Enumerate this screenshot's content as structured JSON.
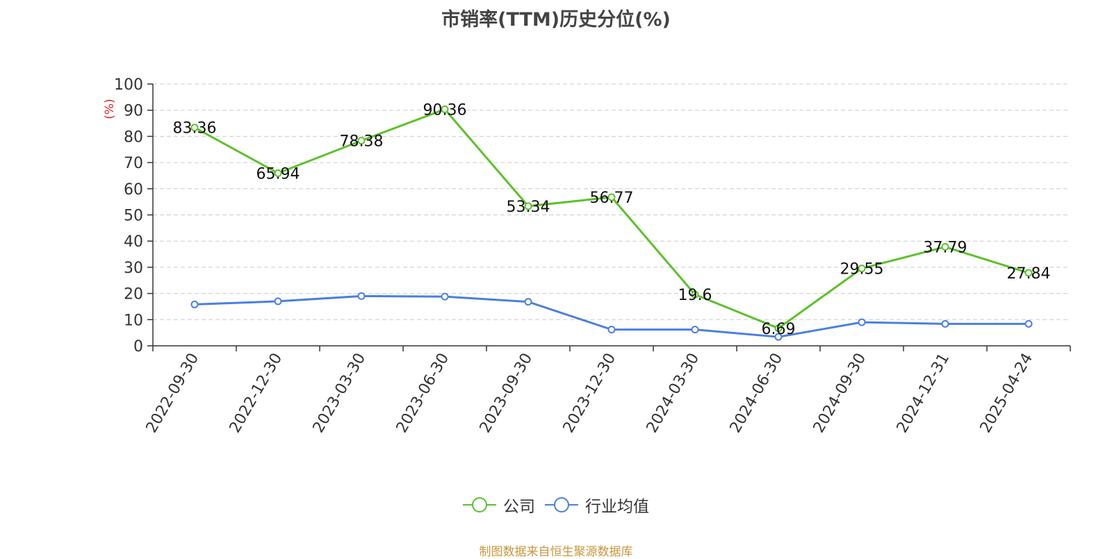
{
  "chart_data": {
    "type": "line",
    "title": "市销率(TTM)历史分位(%)",
    "ylabel": "(%)",
    "ylim": [
      0,
      100
    ],
    "yticks": [
      0,
      10,
      20,
      30,
      40,
      50,
      60,
      70,
      80,
      90,
      100
    ],
    "categories": [
      "2022-09-30",
      "2022-12-30",
      "2023-03-30",
      "2023-06-30",
      "2023-09-30",
      "2023-12-30",
      "2024-03-30",
      "2024-06-30",
      "2024-09-30",
      "2024-12-31",
      "2025-04-24"
    ],
    "grid": true,
    "legend_position": "bottom",
    "series": [
      {
        "name": "公司",
        "color": "#5cc12a",
        "values": [
          83.36,
          65.94,
          78.38,
          90.36,
          53.34,
          56.77,
          19.6,
          6.69,
          29.55,
          37.79,
          27.84
        ],
        "labels": [
          "83.36",
          "65.94",
          "78.38",
          "90.36",
          "53.34",
          "56.77",
          "19.6",
          "6.69",
          "29.55",
          "37.79",
          "27.84"
        ]
      },
      {
        "name": "行业均值",
        "color": "#4a7fe0",
        "values": [
          15.8,
          17.0,
          19.0,
          18.8,
          16.8,
          6.2,
          6.2,
          3.4,
          9.0,
          8.4,
          8.4
        ]
      }
    ]
  },
  "footer": {
    "source": "制图数据来自恒生聚源数据库"
  }
}
